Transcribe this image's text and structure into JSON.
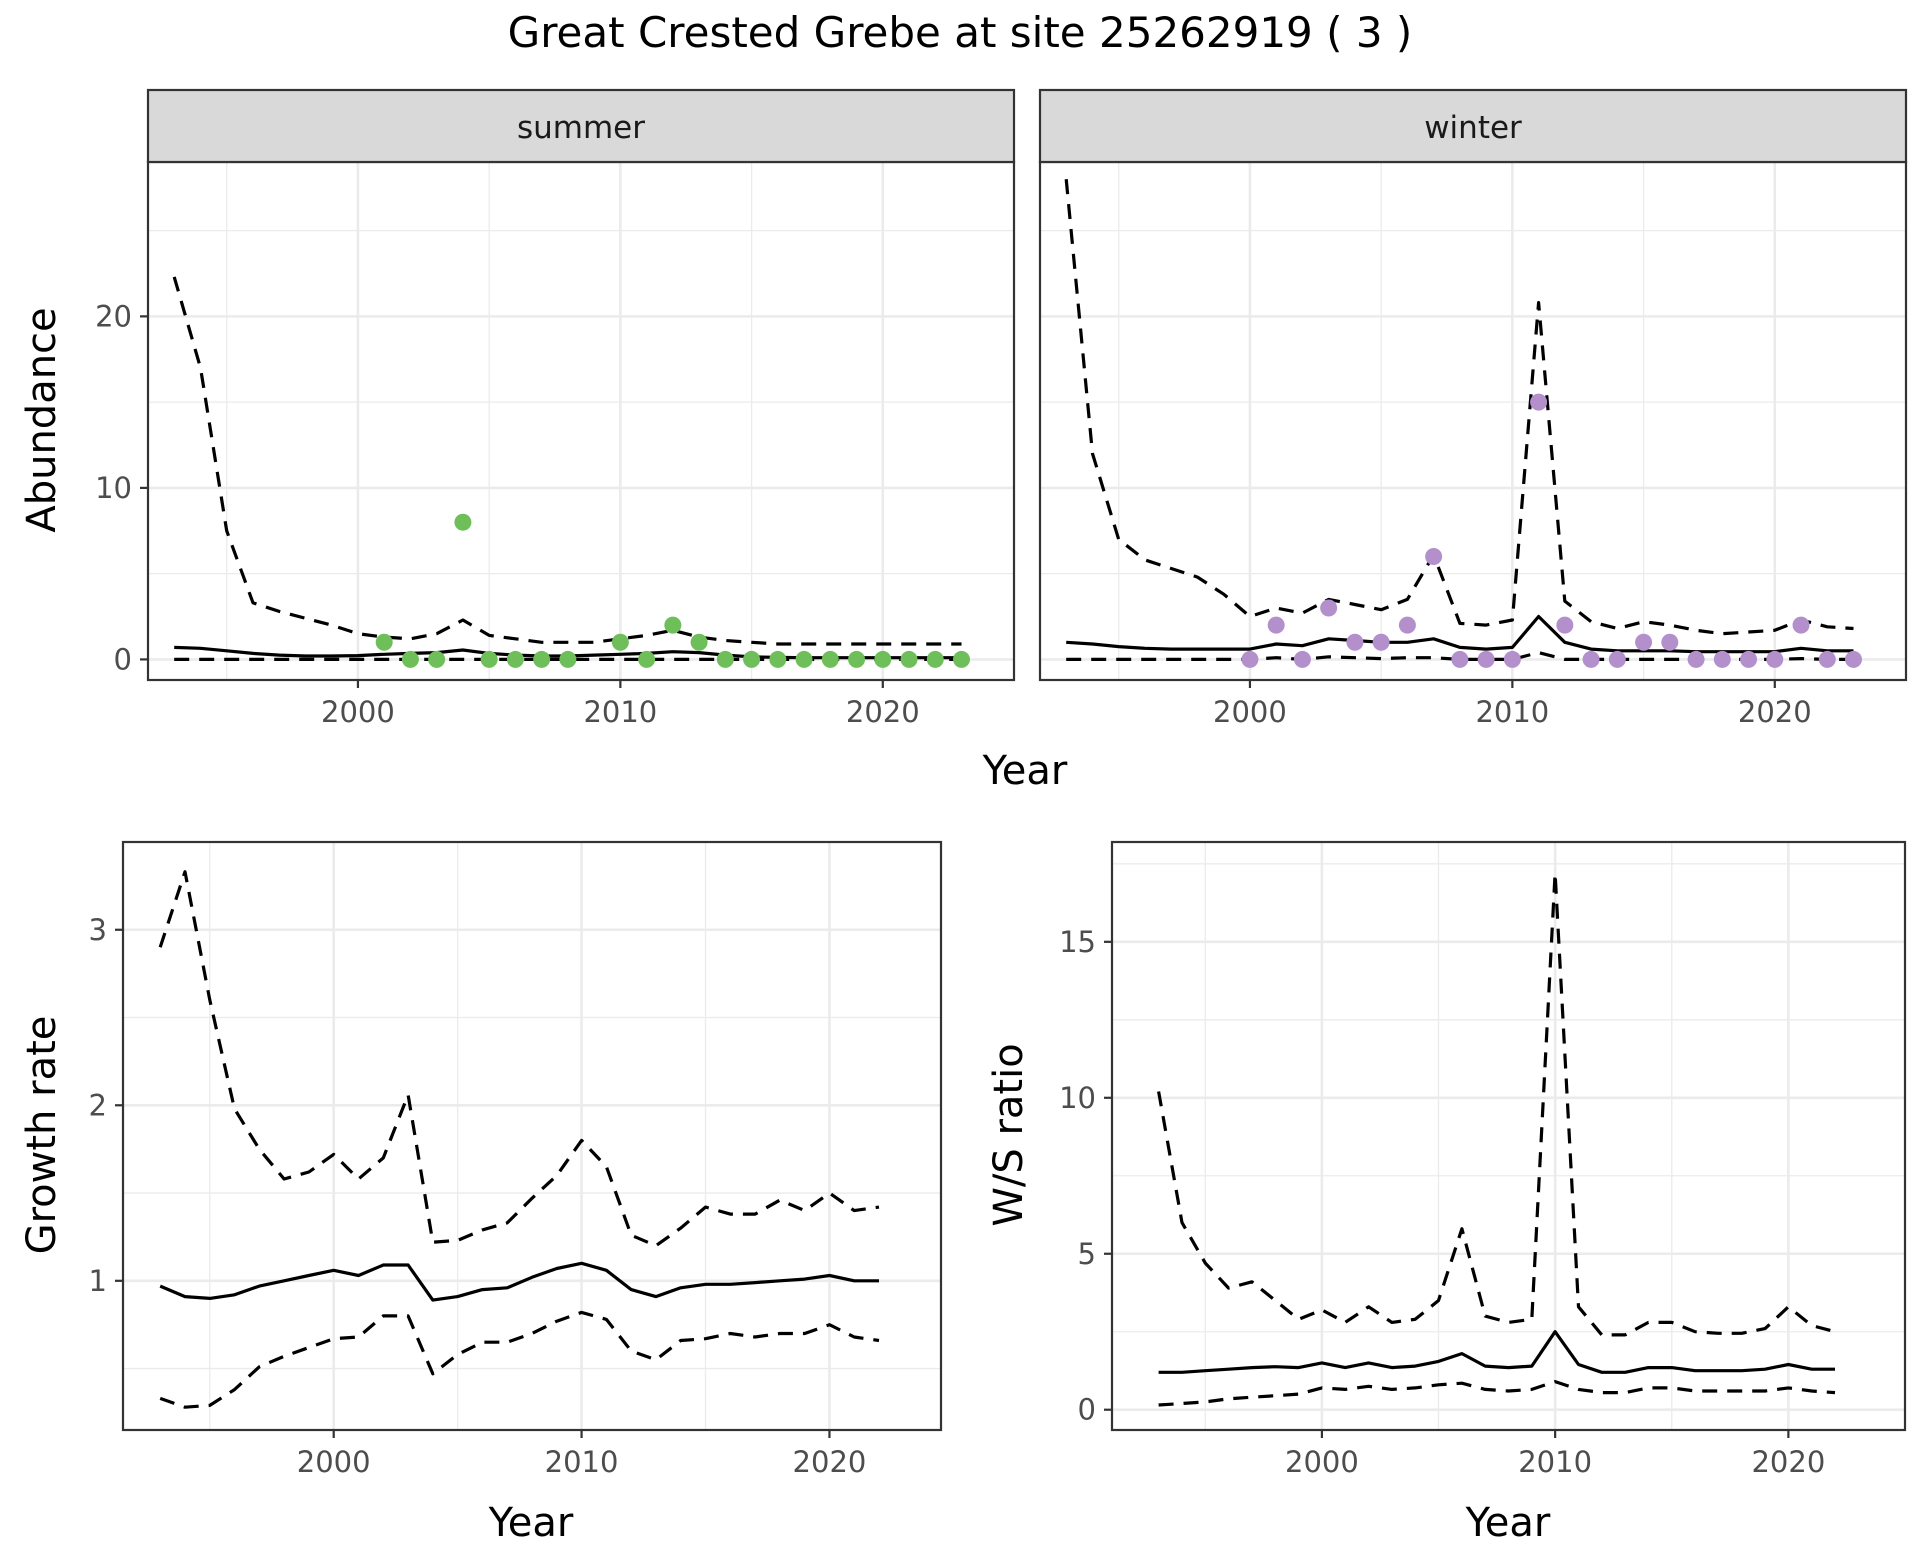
{
  "title": "Great Crested Grebe at site 25262919 ( 3 )",
  "colors": {
    "summer_points": "#6ebf5a",
    "winter_points": "#b38fcb",
    "lines": "#000000"
  },
  "chart_data": [
    {
      "id": "abundance",
      "type": "line",
      "facets": [
        "summer",
        "winter"
      ],
      "xlabel": "Year",
      "ylabel": "Abundance",
      "xlim": [
        1992,
        2025
      ],
      "ylim": [
        -1.2,
        29
      ],
      "x_ticks": [
        2000,
        2010,
        2020
      ],
      "y_ticks": [
        0,
        10,
        20
      ],
      "grid": true,
      "panels": {
        "summer": {
          "fit": {
            "x": [
              1993,
              1994,
              1995,
              1996,
              1997,
              1998,
              1999,
              2000,
              2001,
              2002,
              2003,
              2004,
              2005,
              2006,
              2007,
              2008,
              2009,
              2010,
              2011,
              2012,
              2013,
              2014,
              2015,
              2016,
              2017,
              2018,
              2019,
              2020,
              2021,
              2022,
              2023
            ],
            "y": [
              0.7,
              0.65,
              0.5,
              0.35,
              0.25,
              0.2,
              0.2,
              0.22,
              0.3,
              0.35,
              0.4,
              0.55,
              0.35,
              0.25,
              0.2,
              0.2,
              0.25,
              0.3,
              0.35,
              0.45,
              0.4,
              0.25,
              0.15,
              0.12,
              0.1,
              0.1,
              0.1,
              0.1,
              0.1,
              0.1,
              0.1
            ]
          },
          "upper": {
            "x": [
              1993,
              1994,
              1995,
              1996,
              1997,
              1998,
              1999,
              2000,
              2001,
              2002,
              2003,
              2004,
              2005,
              2006,
              2007,
              2008,
              2009,
              2010,
              2011,
              2012,
              2013,
              2014,
              2015,
              2016,
              2017,
              2018,
              2019,
              2020,
              2021,
              2022,
              2023
            ],
            "y": [
              22.3,
              17,
              7.5,
              3.3,
              2.8,
              2.4,
              2.0,
              1.5,
              1.3,
              1.2,
              1.5,
              2.3,
              1.4,
              1.2,
              1.0,
              1.0,
              1.0,
              1.2,
              1.4,
              1.7,
              1.3,
              1.1,
              1.0,
              0.9,
              0.9,
              0.9,
              0.9,
              0.9,
              0.9,
              0.9,
              0.9
            ]
          },
          "lower": {
            "x": [
              1993,
              2023
            ],
            "y": [
              0,
              0
            ]
          },
          "points": {
            "x": [
              2001,
              2002,
              2003,
              2004,
              2005,
              2006,
              2007,
              2008,
              2010,
              2011,
              2012,
              2013,
              2014,
              2015,
              2016,
              2017,
              2018,
              2019,
              2020,
              2021,
              2022,
              2023
            ],
            "y": [
              1,
              0,
              0,
              8,
              0,
              0,
              0,
              0,
              1,
              0,
              2,
              1,
              0,
              0,
              0,
              0,
              0,
              0,
              0,
              0,
              0,
              0
            ]
          }
        },
        "winter": {
          "fit": {
            "x": [
              1993,
              1994,
              1995,
              1996,
              1997,
              1998,
              1999,
              2000,
              2001,
              2002,
              2003,
              2004,
              2005,
              2006,
              2007,
              2008,
              2009,
              2010,
              2011,
              2012,
              2013,
              2014,
              2015,
              2016,
              2017,
              2018,
              2019,
              2020,
              2021,
              2022,
              2023
            ],
            "y": [
              1.0,
              0.9,
              0.75,
              0.65,
              0.6,
              0.6,
              0.6,
              0.6,
              0.9,
              0.8,
              1.2,
              1.1,
              1.0,
              1.0,
              1.2,
              0.7,
              0.6,
              0.7,
              2.5,
              1.0,
              0.6,
              0.5,
              0.5,
              0.5,
              0.45,
              0.45,
              0.45,
              0.45,
              0.65,
              0.5,
              0.5
            ]
          },
          "upper": {
            "x": [
              1993,
              1994,
              1995,
              1996,
              1997,
              1998,
              1999,
              2000,
              2001,
              2002,
              2003,
              2004,
              2005,
              2006,
              2007,
              2008,
              2009,
              2010,
              2011,
              2012,
              2013,
              2014,
              2015,
              2016,
              2017,
              2018,
              2019,
              2020,
              2021,
              2022,
              2023
            ],
            "y": [
              28,
              12,
              7.0,
              5.8,
              5.3,
              4.8,
              3.8,
              2.5,
              3.0,
              2.7,
              3.5,
              3.2,
              2.9,
              3.5,
              6.1,
              2.1,
              2.0,
              2.3,
              20.8,
              3.4,
              2.2,
              1.8,
              2.2,
              2.0,
              1.7,
              1.5,
              1.6,
              1.7,
              2.3,
              1.9,
              1.8
            ]
          },
          "lower": {
            "x": [
              1993,
              1994,
              1995,
              1996,
              1997,
              1998,
              1999,
              2000,
              2001,
              2002,
              2003,
              2004,
              2005,
              2006,
              2007,
              2008,
              2009,
              2010,
              2011,
              2012,
              2013,
              2014,
              2015,
              2016,
              2017,
              2018,
              2019,
              2020,
              2021,
              2022,
              2023
            ],
            "y": [
              0,
              0,
              0,
              0,
              0,
              0,
              0,
              0,
              0.1,
              0,
              0.15,
              0.1,
              0.05,
              0.1,
              0.1,
              0,
              0,
              0,
              0.4,
              0,
              0,
              0,
              0,
              0,
              0,
              0,
              0,
              0,
              0.05,
              0,
              0
            ]
          },
          "points": {
            "x": [
              2000,
              2001,
              2002,
              2003,
              2004,
              2005,
              2006,
              2007,
              2008,
              2009,
              2010,
              2011,
              2012,
              2013,
              2014,
              2015,
              2016,
              2017,
              2018,
              2019,
              2020,
              2021,
              2022,
              2023
            ],
            "y": [
              0,
              2,
              0,
              3,
              1,
              1,
              2,
              6,
              0,
              0,
              0,
              15,
              2,
              0,
              0,
              1,
              1,
              0,
              0,
              0,
              0,
              2,
              0,
              0
            ]
          }
        }
      }
    },
    {
      "id": "growth",
      "type": "line",
      "xlabel": "Year",
      "ylabel": "Growth rate",
      "xlim": [
        1991.5,
        2024.5
      ],
      "ylim": [
        0.15,
        3.5
      ],
      "x_ticks": [
        2000,
        2010,
        2020
      ],
      "y_ticks": [
        1,
        2,
        3
      ],
      "grid": true,
      "fit": {
        "x": [
          1993,
          1994,
          1995,
          1996,
          1997,
          1998,
          1999,
          2000,
          2001,
          2002,
          2003,
          2004,
          2005,
          2006,
          2007,
          2008,
          2009,
          2010,
          2011,
          2012,
          2013,
          2014,
          2015,
          2016,
          2017,
          2018,
          2019,
          2020,
          2021,
          2022
        ],
        "y": [
          0.97,
          0.91,
          0.9,
          0.92,
          0.97,
          1.0,
          1.03,
          1.06,
          1.03,
          1.09,
          1.09,
          0.89,
          0.91,
          0.95,
          0.96,
          1.02,
          1.07,
          1.1,
          1.06,
          0.95,
          0.91,
          0.96,
          0.98,
          0.98,
          0.99,
          1.0,
          1.01,
          1.03,
          1.0,
          1.0
        ]
      },
      "upper": {
        "x": [
          1993,
          1994,
          1995,
          1996,
          1997,
          1998,
          1999,
          2000,
          2001,
          2002,
          2003,
          2004,
          2005,
          2006,
          2007,
          2008,
          2009,
          2010,
          2011,
          2012,
          2013,
          2014,
          2015,
          2016,
          2017,
          2018,
          2019,
          2020,
          2021,
          2022
        ],
        "y": [
          2.9,
          3.33,
          2.6,
          1.98,
          1.75,
          1.58,
          1.62,
          1.72,
          1.58,
          1.7,
          2.06,
          1.22,
          1.23,
          1.29,
          1.33,
          1.47,
          1.6,
          1.8,
          1.65,
          1.26,
          1.2,
          1.3,
          1.42,
          1.38,
          1.38,
          1.46,
          1.4,
          1.5,
          1.4,
          1.42
        ]
      },
      "lower": {
        "x": [
          1993,
          1994,
          1995,
          1996,
          1997,
          1998,
          1999,
          2000,
          2001,
          2002,
          2003,
          2004,
          2005,
          2006,
          2007,
          2008,
          2009,
          2010,
          2011,
          2012,
          2013,
          2014,
          2015,
          2016,
          2017,
          2018,
          2019,
          2020,
          2021,
          2022
        ],
        "y": [
          0.33,
          0.28,
          0.29,
          0.38,
          0.51,
          0.57,
          0.62,
          0.67,
          0.68,
          0.8,
          0.8,
          0.47,
          0.58,
          0.65,
          0.65,
          0.7,
          0.77,
          0.82,
          0.78,
          0.6,
          0.55,
          0.66,
          0.67,
          0.7,
          0.68,
          0.7,
          0.7,
          0.75,
          0.68,
          0.66
        ]
      }
    },
    {
      "id": "ws_ratio",
      "type": "line",
      "xlabel": "Year",
      "ylabel": "W/S ratio",
      "xlim": [
        1991,
        2025
      ],
      "ylim": [
        -0.65,
        18.2
      ],
      "x_ticks": [
        2000,
        2010,
        2020
      ],
      "y_ticks": [
        0,
        5,
        10,
        15
      ],
      "grid": true,
      "fit": {
        "x": [
          1993,
          1994,
          1995,
          1996,
          1997,
          1998,
          1999,
          2000,
          2001,
          2002,
          2003,
          2004,
          2005,
          2006,
          2007,
          2008,
          2009,
          2010,
          2011,
          2012,
          2013,
          2014,
          2015,
          2016,
          2017,
          2018,
          2019,
          2020,
          2021,
          2022
        ],
        "y": [
          1.2,
          1.2,
          1.25,
          1.3,
          1.35,
          1.38,
          1.35,
          1.5,
          1.35,
          1.5,
          1.35,
          1.4,
          1.55,
          1.8,
          1.4,
          1.35,
          1.4,
          2.5,
          1.45,
          1.2,
          1.2,
          1.35,
          1.35,
          1.25,
          1.25,
          1.25,
          1.3,
          1.45,
          1.3,
          1.3
        ]
      },
      "upper": {
        "x": [
          1993,
          1994,
          1995,
          1996,
          1997,
          1998,
          1999,
          2000,
          2001,
          2002,
          2003,
          2004,
          2005,
          2006,
          2007,
          2008,
          2009,
          2010,
          2011,
          2012,
          2013,
          2014,
          2015,
          2016,
          2017,
          2018,
          2019,
          2020,
          2021,
          2022
        ],
        "y": [
          10.2,
          6,
          4.7,
          3.9,
          4.1,
          3.5,
          2.9,
          3.2,
          2.8,
          3.3,
          2.8,
          2.9,
          3.5,
          5.8,
          3.0,
          2.8,
          2.9,
          17.2,
          3.3,
          2.4,
          2.4,
          2.8,
          2.8,
          2.5,
          2.45,
          2.45,
          2.6,
          3.3,
          2.7,
          2.5
        ]
      },
      "lower": {
        "x": [
          1993,
          1994,
          1995,
          1996,
          1997,
          1998,
          1999,
          2000,
          2001,
          2002,
          2003,
          2004,
          2005,
          2006,
          2007,
          2008,
          2009,
          2010,
          2011,
          2012,
          2013,
          2014,
          2015,
          2016,
          2017,
          2018,
          2019,
          2020,
          2021,
          2022
        ],
        "y": [
          0.15,
          0.2,
          0.25,
          0.35,
          0.4,
          0.45,
          0.5,
          0.7,
          0.65,
          0.75,
          0.65,
          0.7,
          0.8,
          0.85,
          0.65,
          0.6,
          0.65,
          0.9,
          0.65,
          0.55,
          0.55,
          0.7,
          0.7,
          0.6,
          0.6,
          0.6,
          0.6,
          0.7,
          0.6,
          0.55
        ]
      }
    }
  ]
}
